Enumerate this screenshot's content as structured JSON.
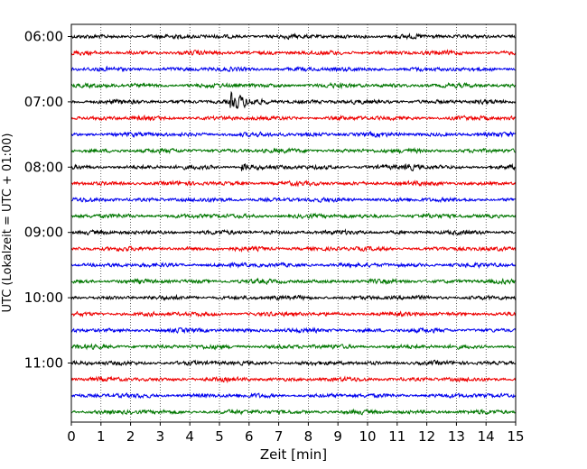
{
  "chart_data": {
    "type": "line",
    "subtype": "helicorder",
    "xlabel": "Zeit  [min]",
    "ylabel": "UTC (Lokalzeit = UTC + 01:00)",
    "xlim": [
      0,
      15
    ],
    "xticks": [
      "0",
      "1",
      "2",
      "3",
      "4",
      "5",
      "6",
      "7",
      "8",
      "9",
      "10",
      "11",
      "12",
      "13",
      "14",
      "15"
    ],
    "yticks": [
      "06:00",
      "07:00",
      "08:00",
      "09:00",
      "10:00",
      "11:00"
    ],
    "row_minutes": 15,
    "start_time": "06:00",
    "trace_count": 24,
    "trace_colors": [
      "#000000",
      "#ee0000",
      "#0000ee",
      "#007700"
    ],
    "grid": "vertical dotted",
    "events": [
      {
        "row": 4,
        "minute": 5.4,
        "amplitude": "large"
      },
      {
        "row": 8,
        "minute": 5.8,
        "amplitude": "small"
      },
      {
        "row": 8,
        "minute": 11.3,
        "amplitude": "small"
      }
    ]
  }
}
